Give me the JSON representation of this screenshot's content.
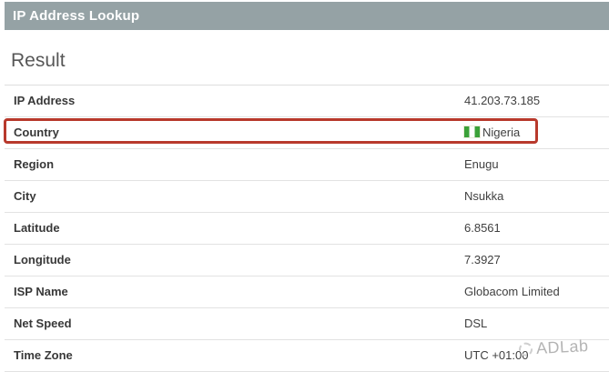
{
  "header": {
    "title": "IP Address Lookup"
  },
  "section": {
    "title": "Result"
  },
  "table": {
    "rows": [
      {
        "label": "IP Address",
        "value": "41.203.73.185"
      },
      {
        "label": "Country",
        "value": "Nigeria",
        "icon": "nigeria-flag-icon",
        "highlighted": true
      },
      {
        "label": "Region",
        "value": "Enugu"
      },
      {
        "label": "City",
        "value": "Nsukka"
      },
      {
        "label": "Latitude",
        "value": "6.8561"
      },
      {
        "label": "Longitude",
        "value": "7.3927"
      },
      {
        "label": "ISP Name",
        "value": "Globacom Limited"
      },
      {
        "label": "Net Speed",
        "value": "DSL"
      },
      {
        "label": "Time Zone",
        "value": "UTC +01:00"
      }
    ]
  },
  "colors": {
    "header_bg": "#95a2a5",
    "highlight_border": "#b8392c",
    "flag_green": "#3ba139",
    "watermark_gray": "#b4b4b4"
  },
  "watermark": {
    "text": "ADLab",
    "logo": "dashed-circle-icon"
  }
}
